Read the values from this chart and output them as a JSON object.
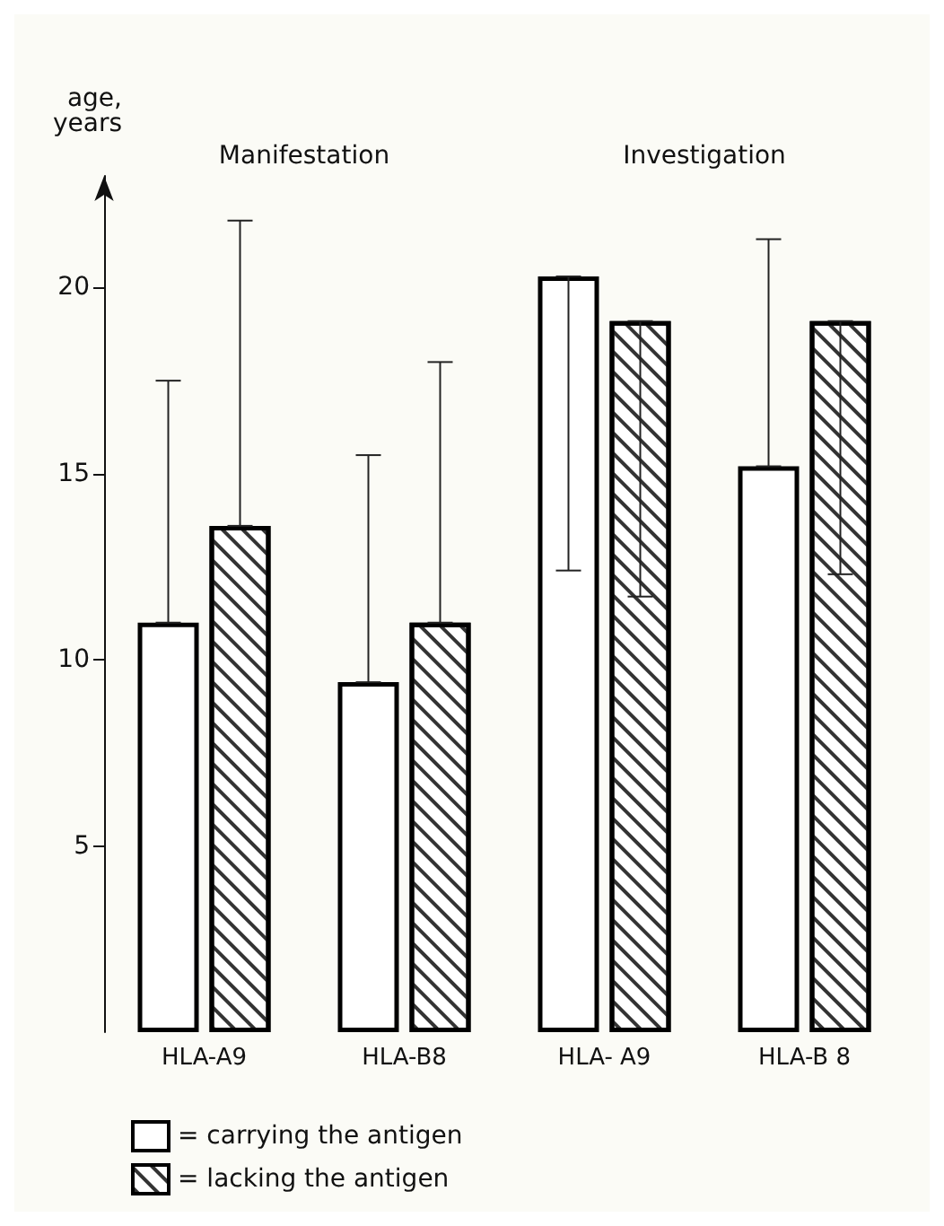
{
  "chart_data": {
    "type": "bar",
    "ylabel": "age,\nyears",
    "categories": [
      "HLA-A9",
      "HLA-B8",
      "HLA- A9",
      "HLA-B 8"
    ],
    "annotations": [
      "Manifestation",
      "Investigation"
    ],
    "series": [
      {
        "name": "= carrying the antigen",
        "color": "#ffffff",
        "values": [
          11.0,
          9.4,
          20.3,
          15.2
        ],
        "errors": [
          [
            11.0,
            17.5
          ],
          [
            9.4,
            15.5
          ],
          [
            12.4,
            20.3
          ],
          [
            15.2,
            21.3
          ]
        ]
      },
      {
        "name": "= lacking the antigen",
        "color": "#ffffff",
        "values": [
          13.6,
          11.0,
          19.1,
          19.1
        ],
        "errors": [
          [
            13.6,
            21.8
          ],
          [
            11.0,
            18.0
          ],
          [
            11.7,
            19.1
          ],
          [
            12.3,
            19.1
          ]
        ]
      }
    ],
    "ylim": [
      0,
      23
    ],
    "yticks": [
      5,
      10,
      15,
      20
    ],
    "grid": false,
    "legend": "bottom left"
  }
}
